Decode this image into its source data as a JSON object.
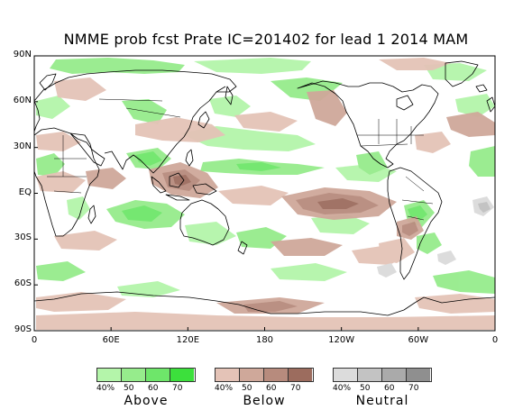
{
  "title": "NMME prob fcst Prate IC=201402 for lead 1 2014 MAM",
  "lat_labels": [
    "90N",
    "60N",
    "30N",
    "EQ",
    "30S",
    "60S",
    "90S"
  ],
  "lat_values": [
    90,
    60,
    30,
    0,
    -30,
    -60,
    -90
  ],
  "lon_labels": [
    "0",
    "60E",
    "120E",
    "180",
    "120W",
    "60W",
    "0"
  ],
  "lon_values": [
    0,
    60,
    120,
    180,
    240,
    300,
    360
  ],
  "colors": {
    "above": [
      "#b4f5aa",
      "#96ec8c",
      "#6ee66a",
      "#3ce03c"
    ],
    "below": [
      "#e4c3b7",
      "#cfa89a",
      "#b78b7d",
      "#9c6c5e"
    ],
    "neutral": [
      "#dcdcdc",
      "#c3c3c3",
      "#aaaaaa",
      "#8f8f8f"
    ],
    "coastline": "#000000",
    "frame": "#000000"
  },
  "legend": [
    {
      "category": "above",
      "caption": "Above",
      "ticks": [
        "40%",
        "50",
        "60",
        "70"
      ]
    },
    {
      "category": "below",
      "caption": "Below",
      "ticks": [
        "40%",
        "50",
        "60",
        "70"
      ]
    },
    {
      "category": "neutral",
      "caption": "Neutral",
      "ticks": [
        "40%",
        "50",
        "60",
        "70"
      ]
    }
  ]
}
